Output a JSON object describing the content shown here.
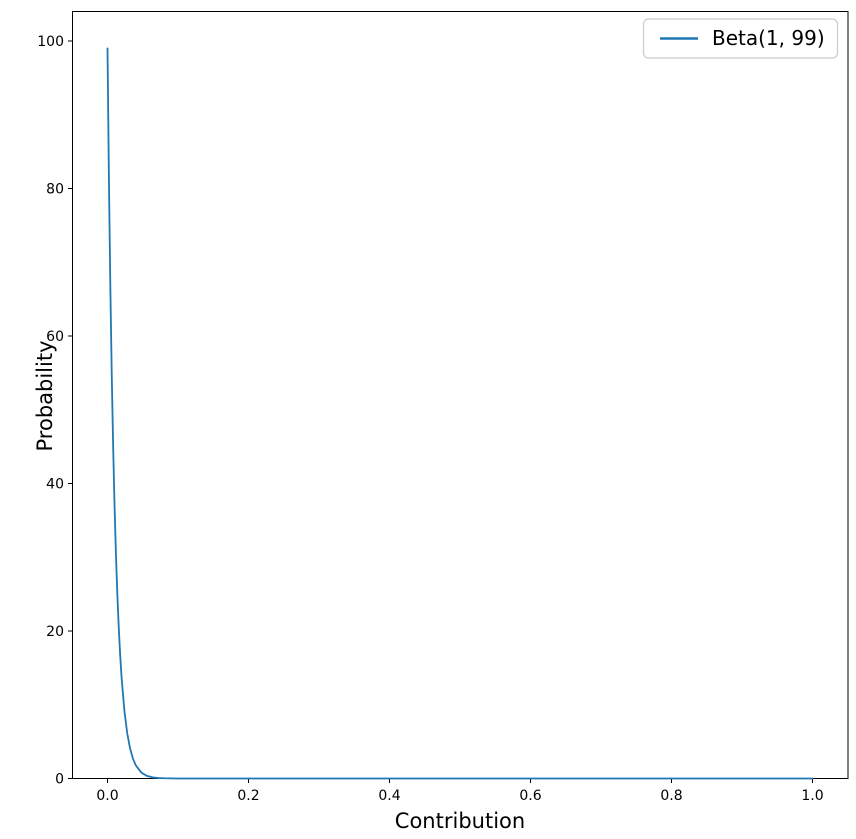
{
  "figure": {
    "background": "#ffffff",
    "text_color": "#000000",
    "legend_border_color": "#cccccc",
    "legend_background": "#ffffff"
  },
  "chart_data": {
    "type": "line",
    "title": "",
    "xlabel": "Contribution",
    "ylabel": "Probability",
    "xlim": [
      -0.05,
      1.05
    ],
    "ylim": [
      0,
      104
    ],
    "x_ticks": [
      0.0,
      0.2,
      0.4,
      0.6,
      0.8,
      1.0
    ],
    "x_tick_labels": [
      "0.0",
      "0.2",
      "0.4",
      "0.6",
      "0.8",
      "1.0"
    ],
    "y_ticks": [
      0,
      20,
      40,
      60,
      80,
      100
    ],
    "y_tick_labels": [
      "0",
      "20",
      "40",
      "60",
      "80",
      "100"
    ],
    "grid": false,
    "legend": {
      "position": "upper right",
      "entries": [
        {
          "label": "Beta(1, 99)",
          "color": "#1f77b4"
        }
      ]
    },
    "series": [
      {
        "name": "Beta(1, 99)",
        "color": "#1f77b4",
        "distribution": {
          "alpha": 1,
          "beta": 99
        },
        "points": [
          [
            0.0,
            99.0
          ],
          [
            0.002,
            81.36
          ],
          [
            0.004,
            66.84
          ],
          [
            0.006,
            54.89
          ],
          [
            0.008,
            45.06
          ],
          [
            0.01,
            36.97
          ],
          [
            0.012,
            30.32
          ],
          [
            0.014,
            24.86
          ],
          [
            0.016,
            20.38
          ],
          [
            0.018,
            16.69
          ],
          [
            0.02,
            13.67
          ],
          [
            0.024,
            9.15
          ],
          [
            0.028,
            6.12
          ],
          [
            0.032,
            4.08
          ],
          [
            0.036,
            2.72
          ],
          [
            0.04,
            1.81
          ],
          [
            0.048,
            0.8
          ],
          [
            0.056,
            0.35
          ],
          [
            0.064,
            0.15
          ],
          [
            0.072,
            0.07
          ],
          [
            0.08,
            0.03
          ],
          [
            0.1,
            0.003
          ],
          [
            0.15,
            0.0
          ],
          [
            0.2,
            0.0
          ],
          [
            0.3,
            0.0
          ],
          [
            0.4,
            0.0
          ],
          [
            0.5,
            0.0
          ],
          [
            0.6,
            0.0
          ],
          [
            0.7,
            0.0
          ],
          [
            0.8,
            0.0
          ],
          [
            0.9,
            0.0
          ],
          [
            1.0,
            0.0
          ]
        ]
      }
    ]
  }
}
